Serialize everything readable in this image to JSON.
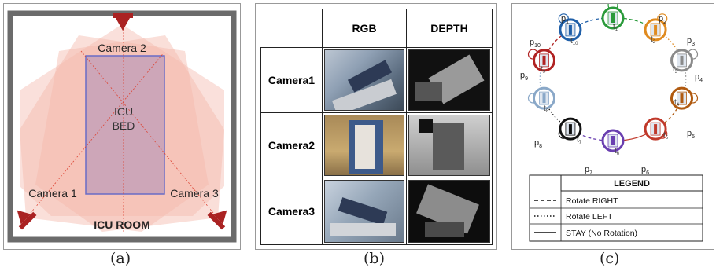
{
  "panel_a": {
    "camera2": "Camera 2",
    "camera1": "Camera 1",
    "camera3": "Camera 3",
    "bed_line1": "ICU",
    "bed_line2": "BED",
    "room": "ICU ROOM"
  },
  "panel_b": {
    "col_rgb": "RGB",
    "col_depth": "DEPTH",
    "rows": [
      "Camera1",
      "Camera2",
      "Camera3"
    ]
  },
  "panel_c": {
    "states": {
      "p1": "p",
      "p1s": "1",
      "p2": "p",
      "p2s": "2",
      "p3": "p",
      "p3s": "3",
      "p4": "p",
      "p4s": "4",
      "p5": "p",
      "p5s": "5",
      "p6": "p",
      "p6s": "6",
      "p7": "p",
      "p7s": "7",
      "p8": "p",
      "p8s": "8",
      "p9": "p",
      "p9s": "9",
      "p10": "p",
      "p10s": "10"
    },
    "transitions": {
      "t1": "t",
      "t1s": "1",
      "t2": "t",
      "t2s": "2",
      "t3": "t",
      "t3s": "3",
      "t4": "t",
      "t4s": "4",
      "t5": "t",
      "t5s": "5",
      "t6": "t",
      "t6s": "6",
      "t7": "t",
      "t7s": "7",
      "t8": "t",
      "t8s": "8",
      "t9": "t",
      "t9s": "9",
      "t10": "t",
      "t10s": "10"
    },
    "node_colors": [
      "#1f5fa8",
      "#2a9a3a",
      "#e08a1e",
      "#8a8a8a",
      "#b05a10",
      "#c0392b",
      "#6a3fb0",
      "#111111",
      "#8aa8c8",
      "#b02222"
    ],
    "legend": {
      "title": "LEGEND",
      "right": "Rotate RIGHT",
      "left": "Rotate LEFT",
      "stay": "STAY (No Rotation)"
    }
  },
  "captions": {
    "a": "(a)",
    "b": "(b)",
    "c": "(c)"
  }
}
